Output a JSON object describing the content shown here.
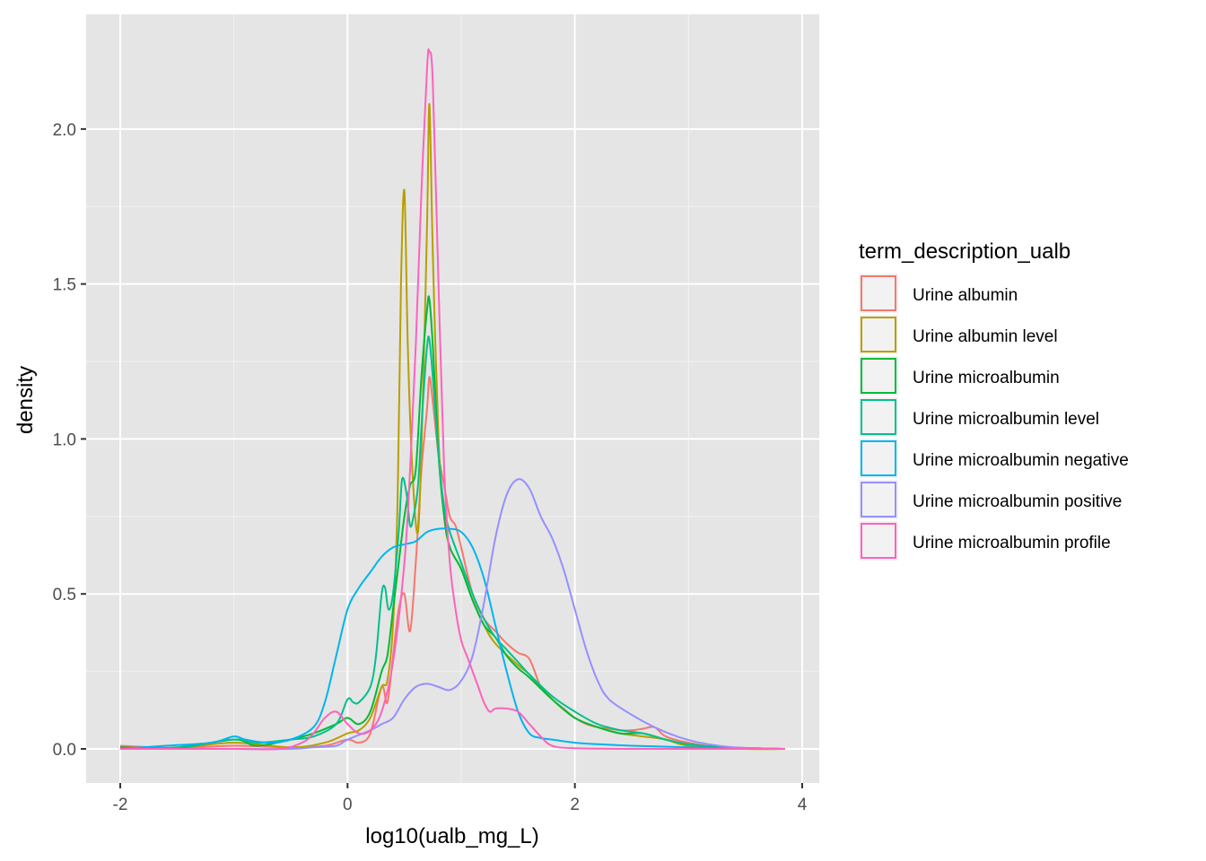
{
  "chart_data": {
    "type": "line",
    "xlabel": "log10(ualb_mg_L)",
    "ylabel": "density",
    "xlim": [
      -2.3,
      4.15
    ],
    "ylim": [
      -0.11,
      2.37
    ],
    "xticks": [
      -2,
      0,
      2,
      4
    ],
    "xtick_labels": [
      "-2",
      "0",
      "2",
      "4"
    ],
    "yticks": [
      0,
      0.5,
      1,
      1.5,
      2
    ],
    "ytick_labels": [
      "0.0",
      "0.5",
      "1.0",
      "1.5",
      "2.0"
    ],
    "background": "#e5e5e5",
    "grid": true,
    "legend": {
      "title": "term_description_ualb",
      "position": "right"
    },
    "series": [
      {
        "name": "Urine albumin",
        "color": "#F8766D",
        "points": [
          [
            -2.0,
            0.01
          ],
          [
            -1.5,
            0.003
          ],
          [
            -1.0,
            0.01
          ],
          [
            -0.5,
            0.005
          ],
          [
            -0.2,
            0.01
          ],
          [
            0.0,
            0.03
          ],
          [
            0.1,
            0.02
          ],
          [
            0.2,
            0.05
          ],
          [
            0.3,
            0.2
          ],
          [
            0.35,
            0.15
          ],
          [
            0.4,
            0.3
          ],
          [
            0.45,
            0.45
          ],
          [
            0.5,
            0.5
          ],
          [
            0.55,
            0.38
          ],
          [
            0.6,
            0.6
          ],
          [
            0.65,
            0.9
          ],
          [
            0.7,
            1.1
          ],
          [
            0.72,
            1.2
          ],
          [
            0.75,
            1.12
          ],
          [
            0.8,
            0.95
          ],
          [
            0.85,
            0.85
          ],
          [
            0.9,
            0.75
          ],
          [
            0.95,
            0.72
          ],
          [
            1.0,
            0.65
          ],
          [
            1.1,
            0.5
          ],
          [
            1.2,
            0.42
          ],
          [
            1.3,
            0.38
          ],
          [
            1.4,
            0.34
          ],
          [
            1.5,
            0.31
          ],
          [
            1.6,
            0.29
          ],
          [
            1.7,
            0.2
          ],
          [
            1.8,
            0.16
          ],
          [
            1.9,
            0.13
          ],
          [
            2.0,
            0.1
          ],
          [
            2.1,
            0.08
          ],
          [
            2.2,
            0.07
          ],
          [
            2.3,
            0.065
          ],
          [
            2.4,
            0.06
          ],
          [
            2.5,
            0.06
          ],
          [
            2.6,
            0.065
          ],
          [
            2.7,
            0.07
          ],
          [
            2.8,
            0.04
          ],
          [
            3.0,
            0.02
          ],
          [
            3.3,
            0.005
          ],
          [
            3.85,
            0.0
          ]
        ]
      },
      {
        "name": "Urine albumin level",
        "color": "#B79F00",
        "points": [
          [
            -2.0,
            0.0
          ],
          [
            -1.5,
            0.003
          ],
          [
            -1.0,
            0.02
          ],
          [
            -0.5,
            0.005
          ],
          [
            -0.2,
            0.02
          ],
          [
            0.0,
            0.05
          ],
          [
            0.1,
            0.06
          ],
          [
            0.2,
            0.1
          ],
          [
            0.3,
            0.2
          ],
          [
            0.35,
            0.22
          ],
          [
            0.4,
            0.4
          ],
          [
            0.44,
            0.8
          ],
          [
            0.47,
            1.5
          ],
          [
            0.5,
            1.8
          ],
          [
            0.53,
            1.3
          ],
          [
            0.57,
            0.9
          ],
          [
            0.62,
            0.7
          ],
          [
            0.66,
            1.1
          ],
          [
            0.7,
            1.7
          ],
          [
            0.72,
            2.08
          ],
          [
            0.75,
            1.6
          ],
          [
            0.8,
            1.0
          ],
          [
            0.85,
            0.75
          ],
          [
            0.9,
            0.65
          ],
          [
            1.0,
            0.58
          ],
          [
            1.1,
            0.48
          ],
          [
            1.2,
            0.4
          ],
          [
            1.3,
            0.34
          ],
          [
            1.5,
            0.27
          ],
          [
            1.6,
            0.24
          ],
          [
            1.8,
            0.16
          ],
          [
            2.0,
            0.1
          ],
          [
            2.2,
            0.07
          ],
          [
            2.4,
            0.05
          ],
          [
            2.6,
            0.04
          ],
          [
            2.8,
            0.03
          ],
          [
            3.0,
            0.01
          ],
          [
            3.5,
            0.0
          ],
          [
            3.85,
            0.0
          ]
        ]
      },
      {
        "name": "Urine microalbumin",
        "color": "#00BA38",
        "points": [
          [
            -2.0,
            0.005
          ],
          [
            -1.5,
            0.003
          ],
          [
            -1.0,
            0.03
          ],
          [
            -0.8,
            0.01
          ],
          [
            -0.5,
            0.03
          ],
          [
            -0.3,
            0.05
          ],
          [
            -0.1,
            0.08
          ],
          [
            0.0,
            0.1
          ],
          [
            0.1,
            0.08
          ],
          [
            0.2,
            0.12
          ],
          [
            0.3,
            0.25
          ],
          [
            0.35,
            0.3
          ],
          [
            0.4,
            0.45
          ],
          [
            0.45,
            0.6
          ],
          [
            0.5,
            0.75
          ],
          [
            0.55,
            0.85
          ],
          [
            0.6,
            0.9
          ],
          [
            0.65,
            1.2
          ],
          [
            0.7,
            1.42
          ],
          [
            0.72,
            1.45
          ],
          [
            0.75,
            1.3
          ],
          [
            0.8,
            0.95
          ],
          [
            0.85,
            0.75
          ],
          [
            0.9,
            0.65
          ],
          [
            1.0,
            0.58
          ],
          [
            1.1,
            0.48
          ],
          [
            1.2,
            0.4
          ],
          [
            1.3,
            0.36
          ],
          [
            1.4,
            0.3
          ],
          [
            1.5,
            0.26
          ],
          [
            1.6,
            0.23
          ],
          [
            1.8,
            0.16
          ],
          [
            2.0,
            0.1
          ],
          [
            2.2,
            0.07
          ],
          [
            2.4,
            0.05
          ],
          [
            2.6,
            0.05
          ],
          [
            2.8,
            0.03
          ],
          [
            3.0,
            0.015
          ],
          [
            3.3,
            0.005
          ],
          [
            3.85,
            0.0
          ]
        ]
      },
      {
        "name": "Urine microalbumin level",
        "color": "#00C08B",
        "points": [
          [
            -2.0,
            0.0
          ],
          [
            -1.5,
            0.005
          ],
          [
            -1.0,
            0.03
          ],
          [
            -0.8,
            0.02
          ],
          [
            -0.5,
            0.03
          ],
          [
            -0.3,
            0.04
          ],
          [
            -0.1,
            0.08
          ],
          [
            0.0,
            0.16
          ],
          [
            0.05,
            0.15
          ],
          [
            0.1,
            0.15
          ],
          [
            0.2,
            0.2
          ],
          [
            0.25,
            0.3
          ],
          [
            0.3,
            0.5
          ],
          [
            0.33,
            0.52
          ],
          [
            0.36,
            0.45
          ],
          [
            0.4,
            0.5
          ],
          [
            0.45,
            0.7
          ],
          [
            0.48,
            0.87
          ],
          [
            0.52,
            0.82
          ],
          [
            0.55,
            0.72
          ],
          [
            0.58,
            0.75
          ],
          [
            0.62,
            0.85
          ],
          [
            0.66,
            1.1
          ],
          [
            0.7,
            1.3
          ],
          [
            0.72,
            1.32
          ],
          [
            0.75,
            1.2
          ],
          [
            0.8,
            0.95
          ],
          [
            0.85,
            0.78
          ],
          [
            0.9,
            0.7
          ],
          [
            1.0,
            0.6
          ],
          [
            1.1,
            0.5
          ],
          [
            1.2,
            0.42
          ],
          [
            1.3,
            0.36
          ],
          [
            1.4,
            0.32
          ],
          [
            1.5,
            0.28
          ],
          [
            1.6,
            0.24
          ],
          [
            1.8,
            0.17
          ],
          [
            2.0,
            0.12
          ],
          [
            2.2,
            0.08
          ],
          [
            2.4,
            0.06
          ],
          [
            2.6,
            0.05
          ],
          [
            2.8,
            0.03
          ],
          [
            3.0,
            0.015
          ],
          [
            3.3,
            0.005
          ],
          [
            3.85,
            0.0
          ]
        ]
      },
      {
        "name": "Urine microalbumin negative",
        "color": "#00B4EF",
        "points": [
          [
            -2.0,
            0.0
          ],
          [
            -1.6,
            0.01
          ],
          [
            -1.2,
            0.02
          ],
          [
            -1.0,
            0.04
          ],
          [
            -0.9,
            0.03
          ],
          [
            -0.7,
            0.02
          ],
          [
            -0.5,
            0.03
          ],
          [
            -0.3,
            0.07
          ],
          [
            -0.2,
            0.15
          ],
          [
            -0.1,
            0.3
          ],
          [
            0.0,
            0.45
          ],
          [
            0.1,
            0.52
          ],
          [
            0.2,
            0.57
          ],
          [
            0.3,
            0.62
          ],
          [
            0.4,
            0.65
          ],
          [
            0.5,
            0.66
          ],
          [
            0.6,
            0.67
          ],
          [
            0.7,
            0.7
          ],
          [
            0.8,
            0.71
          ],
          [
            0.9,
            0.71
          ],
          [
            1.0,
            0.7
          ],
          [
            1.1,
            0.65
          ],
          [
            1.2,
            0.55
          ],
          [
            1.3,
            0.4
          ],
          [
            1.4,
            0.25
          ],
          [
            1.5,
            0.12
          ],
          [
            1.6,
            0.05
          ],
          [
            1.7,
            0.035
          ],
          [
            1.8,
            0.03
          ],
          [
            2.0,
            0.02
          ],
          [
            2.2,
            0.015
          ],
          [
            2.5,
            0.01
          ],
          [
            3.0,
            0.005
          ],
          [
            3.85,
            0.0
          ]
        ]
      },
      {
        "name": "Urine microalbumin positive",
        "color": "#9590FF",
        "points": [
          [
            -2.0,
            0.0
          ],
          [
            -1.0,
            0.0
          ],
          [
            -0.5,
            0.0
          ],
          [
            -0.3,
            0.005
          ],
          [
            -0.1,
            0.01
          ],
          [
            0.0,
            0.03
          ],
          [
            0.2,
            0.06
          ],
          [
            0.3,
            0.08
          ],
          [
            0.4,
            0.1
          ],
          [
            0.5,
            0.16
          ],
          [
            0.6,
            0.2
          ],
          [
            0.7,
            0.21
          ],
          [
            0.8,
            0.2
          ],
          [
            0.9,
            0.19
          ],
          [
            1.0,
            0.22
          ],
          [
            1.1,
            0.3
          ],
          [
            1.2,
            0.47
          ],
          [
            1.3,
            0.68
          ],
          [
            1.4,
            0.82
          ],
          [
            1.5,
            0.87
          ],
          [
            1.6,
            0.84
          ],
          [
            1.7,
            0.75
          ],
          [
            1.8,
            0.68
          ],
          [
            1.9,
            0.58
          ],
          [
            2.0,
            0.45
          ],
          [
            2.1,
            0.32
          ],
          [
            2.2,
            0.22
          ],
          [
            2.3,
            0.16
          ],
          [
            2.5,
            0.11
          ],
          [
            2.7,
            0.07
          ],
          [
            2.9,
            0.04
          ],
          [
            3.1,
            0.02
          ],
          [
            3.4,
            0.005
          ],
          [
            3.85,
            0.0
          ]
        ]
      },
      {
        "name": "Urine microalbumin profile",
        "color": "#FF62BC",
        "points": [
          [
            -2.0,
            0.0
          ],
          [
            -1.0,
            0.0
          ],
          [
            -0.6,
            0.0
          ],
          [
            -0.4,
            0.02
          ],
          [
            -0.3,
            0.05
          ],
          [
            -0.2,
            0.1
          ],
          [
            -0.1,
            0.12
          ],
          [
            0.0,
            0.08
          ],
          [
            0.1,
            0.05
          ],
          [
            0.2,
            0.06
          ],
          [
            0.3,
            0.12
          ],
          [
            0.4,
            0.28
          ],
          [
            0.5,
            0.6
          ],
          [
            0.55,
            0.9
          ],
          [
            0.6,
            1.3
          ],
          [
            0.65,
            1.8
          ],
          [
            0.7,
            2.2
          ],
          [
            0.72,
            2.25
          ],
          [
            0.75,
            2.15
          ],
          [
            0.8,
            1.5
          ],
          [
            0.85,
            0.9
          ],
          [
            0.9,
            0.6
          ],
          [
            0.95,
            0.45
          ],
          [
            1.0,
            0.35
          ],
          [
            1.05,
            0.3
          ],
          [
            1.1,
            0.25
          ],
          [
            1.15,
            0.2
          ],
          [
            1.2,
            0.15
          ],
          [
            1.25,
            0.12
          ],
          [
            1.3,
            0.13
          ],
          [
            1.4,
            0.13
          ],
          [
            1.5,
            0.12
          ],
          [
            1.6,
            0.08
          ],
          [
            1.7,
            0.04
          ],
          [
            1.8,
            0.01
          ],
          [
            2.0,
            0.002
          ],
          [
            2.5,
            0.0
          ],
          [
            3.85,
            0.0
          ]
        ]
      }
    ]
  }
}
